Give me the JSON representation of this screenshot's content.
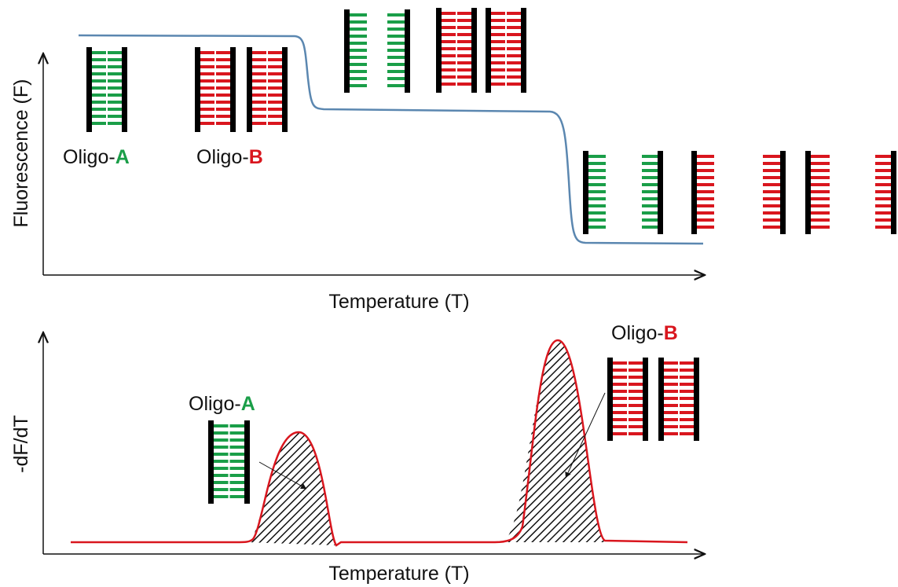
{
  "top_panel": {
    "y_label": "Fluorescence (F)",
    "x_label": "Temperature (T)",
    "labels": [
      {
        "prefix": "Oligo-",
        "letter": "A"
      },
      {
        "prefix": "Oligo-",
        "letter": "B"
      }
    ]
  },
  "bottom_panel": {
    "y_label": "-dF/dT",
    "x_label": "Temperature (T)",
    "labels": [
      {
        "prefix": "Oligo-",
        "letter": "A"
      },
      {
        "prefix": "Oligo-",
        "letter": "B"
      }
    ]
  }
}
